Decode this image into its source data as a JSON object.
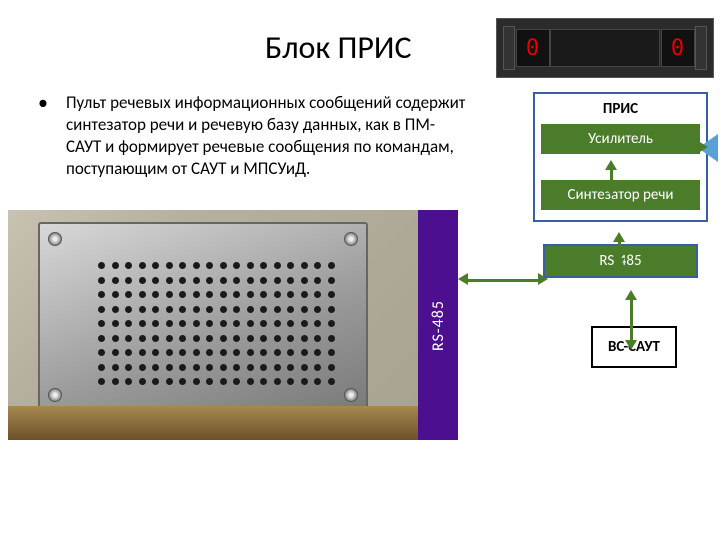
{
  "title": "Блок ПРИС",
  "bullet": "Пульт речевых информационных сообщений содержит синтезатор речи и речевую базу данных, как в ПМ-САУТ и формирует речевые сообщения по командам, поступающим от САУТ и МПСУиД.",
  "top_device": {
    "left_digit": "0",
    "right_digit": "0"
  },
  "diagram": {
    "box_title": "ПРИС",
    "amp": "Усилитель",
    "synth": "Синтезатор речи",
    "rs485": "RS-485",
    "bc": "ВС-САУТ",
    "colors": {
      "green": "#4a7c2a",
      "border_blue": "#3a5da8",
      "purple": "#4b0f8f",
      "speaker": "#5aa0d8"
    }
  },
  "side_label": "RS-485"
}
